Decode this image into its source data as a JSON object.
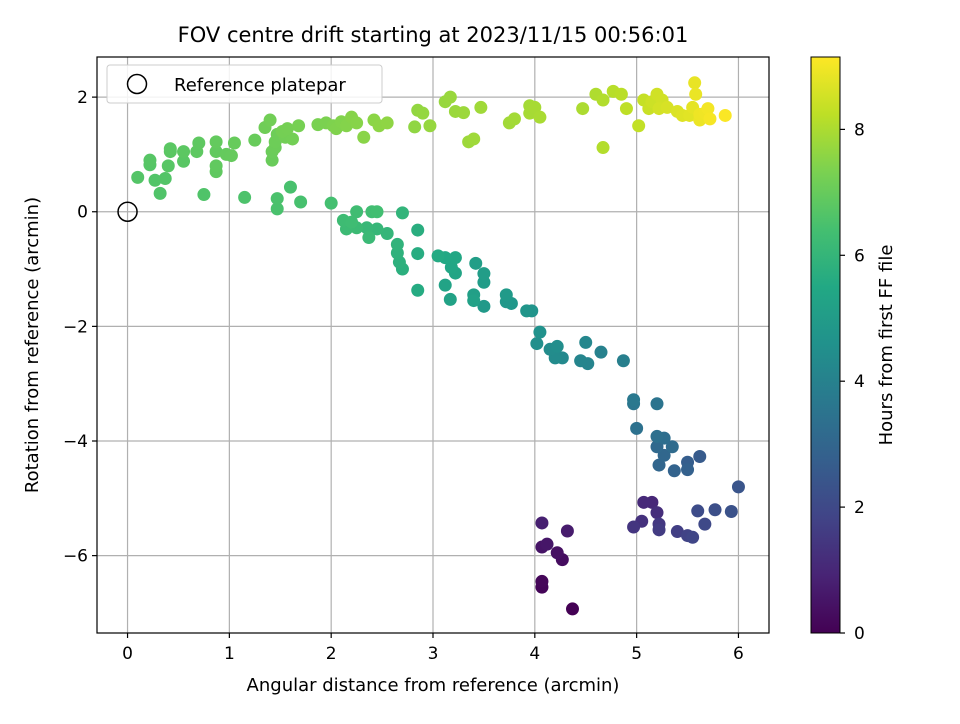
{
  "chart_data": {
    "type": "scatter",
    "title": "FOV centre drift starting at 2023/11/15 00:56:01",
    "xlabel": "Angular distance from reference (arcmin)",
    "ylabel": "Rotation from reference (arcmin)",
    "xlim": [
      -0.3,
      6.3
    ],
    "ylim": [
      -7.35,
      2.7
    ],
    "x_ticks": [
      0,
      1,
      2,
      3,
      4,
      5,
      6
    ],
    "y_ticks": [
      -6,
      -4,
      -2,
      0,
      2
    ],
    "grid": true,
    "legend": {
      "placement": "top-left",
      "entries": [
        "Reference platepar"
      ]
    },
    "reference_point": {
      "x": 0,
      "y": 0,
      "label": "Reference platepar",
      "marker": "open-circle"
    },
    "colorbar": {
      "label": "Hours from first FF file",
      "range": [
        0,
        9.15
      ],
      "ticks": [
        0,
        2,
        4,
        6,
        8
      ],
      "colormap": "viridis"
    },
    "series": [
      {
        "columns": [
          "x",
          "y",
          "hours"
        ],
        "points": [
          [
            4.37,
            -6.93,
            0.0
          ],
          [
            4.07,
            -6.55,
            0.1
          ],
          [
            4.07,
            -6.45,
            0.15
          ],
          [
            4.27,
            -6.07,
            0.3
          ],
          [
            4.22,
            -5.95,
            0.4
          ],
          [
            4.07,
            -5.85,
            0.5
          ],
          [
            4.12,
            -5.8,
            0.55
          ],
          [
            4.32,
            -5.57,
            0.7
          ],
          [
            4.07,
            -5.43,
            0.8
          ],
          [
            5.15,
            -5.07,
            1.0
          ],
          [
            5.07,
            -5.07,
            1.1
          ],
          [
            5.2,
            -5.25,
            1.2
          ],
          [
            5.05,
            -5.4,
            1.3
          ],
          [
            4.97,
            -5.5,
            1.4
          ],
          [
            5.22,
            -5.45,
            1.5
          ],
          [
            5.22,
            -5.55,
            1.6
          ],
          [
            5.4,
            -5.58,
            1.7
          ],
          [
            5.5,
            -5.65,
            1.8
          ],
          [
            5.55,
            -5.68,
            1.9
          ],
          [
            5.67,
            -5.45,
            2.0
          ],
          [
            5.6,
            -5.22,
            2.1
          ],
          [
            5.77,
            -5.2,
            2.2
          ],
          [
            5.93,
            -5.23,
            2.3
          ],
          [
            6.0,
            -4.8,
            2.4
          ],
          [
            5.62,
            -4.27,
            2.6
          ],
          [
            5.5,
            -4.37,
            2.7
          ],
          [
            5.5,
            -4.5,
            2.8
          ],
          [
            5.37,
            -4.52,
            2.9
          ],
          [
            5.22,
            -4.42,
            3.0
          ],
          [
            5.27,
            -4.25,
            3.05
          ],
          [
            5.2,
            -4.1,
            3.1
          ],
          [
            5.35,
            -4.1,
            3.2
          ],
          [
            5.27,
            -3.95,
            3.3
          ],
          [
            5.2,
            -3.92,
            3.35
          ],
          [
            5.0,
            -3.78,
            3.4
          ],
          [
            5.2,
            -3.35,
            3.5
          ],
          [
            4.97,
            -3.35,
            3.6
          ],
          [
            4.97,
            -3.28,
            3.65
          ],
          [
            4.87,
            -2.6,
            3.9
          ],
          [
            4.65,
            -2.45,
            4.0
          ],
          [
            4.52,
            -2.65,
            4.1
          ],
          [
            4.45,
            -2.6,
            4.15
          ],
          [
            4.5,
            -2.28,
            4.2
          ],
          [
            4.27,
            -2.55,
            4.3
          ],
          [
            4.2,
            -2.55,
            4.35
          ],
          [
            4.15,
            -2.4,
            4.4
          ],
          [
            4.22,
            -2.35,
            4.45
          ],
          [
            4.02,
            -2.3,
            4.5
          ],
          [
            4.05,
            -2.1,
            4.6
          ],
          [
            3.97,
            -1.73,
            4.7
          ],
          [
            3.92,
            -1.73,
            4.75
          ],
          [
            3.77,
            -1.6,
            4.8
          ],
          [
            3.72,
            -1.57,
            4.85
          ],
          [
            3.5,
            -1.65,
            4.9
          ],
          [
            3.72,
            -1.45,
            4.95
          ],
          [
            3.5,
            -1.23,
            5.0
          ],
          [
            3.5,
            -1.08,
            5.05
          ],
          [
            3.42,
            -0.9,
            5.1
          ],
          [
            3.4,
            -1.45,
            5.15
          ],
          [
            3.4,
            -1.55,
            5.2
          ],
          [
            3.17,
            -1.53,
            5.25
          ],
          [
            3.12,
            -1.28,
            5.3
          ],
          [
            3.22,
            -1.07,
            5.35
          ],
          [
            3.18,
            -0.97,
            5.4
          ],
          [
            3.22,
            -0.8,
            5.45
          ],
          [
            3.12,
            -0.8,
            5.5
          ],
          [
            3.05,
            -0.77,
            5.55
          ],
          [
            2.85,
            -1.37,
            5.6
          ],
          [
            2.85,
            -0.73,
            5.65
          ],
          [
            2.85,
            -0.32,
            5.7
          ],
          [
            2.7,
            -1.0,
            5.75
          ],
          [
            2.67,
            -0.88,
            5.8
          ],
          [
            2.65,
            -0.72,
            5.85
          ],
          [
            2.65,
            -0.57,
            5.9
          ],
          [
            2.7,
            -0.02,
            5.95
          ],
          [
            2.55,
            -0.38,
            6.0
          ],
          [
            2.45,
            -0.3,
            6.05
          ],
          [
            2.35,
            -0.28,
            6.1
          ],
          [
            2.37,
            -0.45,
            6.15
          ],
          [
            2.25,
            -0.28,
            6.2
          ],
          [
            2.15,
            -0.3,
            6.22
          ],
          [
            2.12,
            -0.15,
            6.25
          ],
          [
            2.2,
            -0.18,
            6.28
          ],
          [
            2.25,
            0.0,
            6.3
          ],
          [
            2.4,
            0.0,
            6.32
          ],
          [
            2.45,
            0.0,
            6.35
          ],
          [
            2.0,
            0.15,
            6.4
          ],
          [
            1.7,
            0.17,
            6.45
          ],
          [
            1.6,
            0.43,
            6.48
          ],
          [
            1.47,
            0.05,
            6.5
          ],
          [
            1.47,
            0.23,
            6.52
          ],
          [
            1.15,
            0.25,
            6.55
          ],
          [
            0.75,
            0.3,
            6.6
          ],
          [
            0.32,
            0.32,
            6.62
          ],
          [
            0.27,
            0.55,
            6.64
          ],
          [
            0.37,
            0.58,
            6.66
          ],
          [
            0.1,
            0.6,
            6.68
          ],
          [
            0.22,
            0.82,
            6.7
          ],
          [
            0.22,
            0.9,
            6.72
          ],
          [
            0.4,
            0.8,
            6.74
          ],
          [
            0.55,
            0.88,
            6.76
          ],
          [
            0.42,
            1.05,
            6.78
          ],
          [
            0.42,
            1.1,
            6.8
          ],
          [
            0.55,
            1.05,
            6.82
          ],
          [
            0.68,
            1.05,
            6.84
          ],
          [
            0.7,
            1.2,
            6.86
          ],
          [
            0.87,
            0.7,
            6.88
          ],
          [
            0.87,
            0.8,
            6.9
          ],
          [
            0.87,
            1.05,
            6.92
          ],
          [
            0.87,
            1.22,
            6.94
          ],
          [
            0.97,
            1.0,
            6.96
          ],
          [
            1.02,
            0.98,
            6.98
          ],
          [
            1.05,
            1.2,
            7.0
          ],
          [
            1.25,
            1.25,
            7.02
          ],
          [
            1.42,
            0.9,
            7.04
          ],
          [
            1.42,
            1.05,
            7.06
          ],
          [
            1.45,
            1.12,
            7.08
          ],
          [
            1.45,
            1.22,
            7.1
          ],
          [
            1.47,
            1.35,
            7.12
          ],
          [
            1.35,
            1.47,
            7.14
          ],
          [
            1.4,
            1.6,
            7.16
          ],
          [
            1.55,
            1.3,
            7.18
          ],
          [
            1.62,
            1.27,
            7.2
          ],
          [
            1.52,
            1.4,
            7.22
          ],
          [
            1.57,
            1.45,
            7.24
          ],
          [
            1.68,
            1.5,
            7.26
          ],
          [
            1.87,
            1.52,
            7.3
          ],
          [
            1.95,
            1.55,
            7.34
          ],
          [
            2.02,
            1.5,
            7.38
          ],
          [
            2.05,
            1.45,
            7.4
          ],
          [
            2.1,
            1.57,
            7.42
          ],
          [
            2.15,
            1.5,
            7.45
          ],
          [
            2.2,
            1.65,
            7.48
          ],
          [
            2.25,
            1.55,
            7.5
          ],
          [
            2.32,
            1.3,
            7.52
          ],
          [
            2.42,
            1.6,
            7.55
          ],
          [
            2.47,
            1.5,
            7.58
          ],
          [
            2.55,
            1.55,
            7.6
          ],
          [
            2.82,
            1.48,
            7.62
          ],
          [
            2.85,
            1.77,
            7.65
          ],
          [
            2.9,
            1.72,
            7.68
          ],
          [
            2.97,
            1.5,
            7.7
          ],
          [
            3.12,
            1.92,
            7.72
          ],
          [
            3.17,
            2.0,
            7.74
          ],
          [
            3.22,
            1.75,
            7.76
          ],
          [
            3.3,
            1.73,
            7.78
          ],
          [
            3.35,
            1.22,
            7.8
          ],
          [
            3.4,
            1.27,
            7.82
          ],
          [
            3.47,
            1.82,
            7.84
          ],
          [
            3.75,
            1.55,
            7.86
          ],
          [
            3.8,
            1.62,
            7.88
          ],
          [
            3.95,
            1.85,
            7.9
          ],
          [
            3.95,
            1.72,
            7.92
          ],
          [
            4.0,
            1.82,
            7.94
          ],
          [
            4.05,
            1.65,
            7.96
          ],
          [
            4.47,
            1.8,
            8.0
          ],
          [
            4.6,
            2.05,
            8.05
          ],
          [
            4.67,
            1.95,
            8.08
          ],
          [
            4.67,
            1.12,
            8.1
          ],
          [
            4.77,
            2.1,
            8.15
          ],
          [
            4.85,
            2.05,
            8.2
          ],
          [
            4.9,
            1.8,
            8.25
          ],
          [
            5.02,
            1.5,
            8.3
          ],
          [
            5.07,
            1.95,
            8.35
          ],
          [
            5.12,
            1.8,
            8.4
          ],
          [
            5.15,
            1.92,
            8.45
          ],
          [
            5.2,
            2.05,
            8.5
          ],
          [
            5.25,
            1.95,
            8.52
          ],
          [
            5.22,
            1.8,
            8.55
          ],
          [
            5.3,
            1.82,
            8.6
          ],
          [
            5.4,
            1.75,
            8.65
          ],
          [
            5.45,
            1.68,
            8.7
          ],
          [
            5.52,
            1.68,
            8.75
          ],
          [
            5.55,
            1.82,
            8.8
          ],
          [
            5.57,
            2.25,
            8.85
          ],
          [
            5.58,
            2.05,
            8.88
          ],
          [
            5.62,
            1.6,
            8.9
          ],
          [
            5.62,
            1.7,
            8.93
          ],
          [
            5.67,
            1.72,
            8.96
          ],
          [
            5.7,
            1.8,
            9.0
          ],
          [
            5.72,
            1.62,
            9.05
          ],
          [
            5.87,
            1.68,
            9.1
          ]
        ]
      }
    ]
  }
}
